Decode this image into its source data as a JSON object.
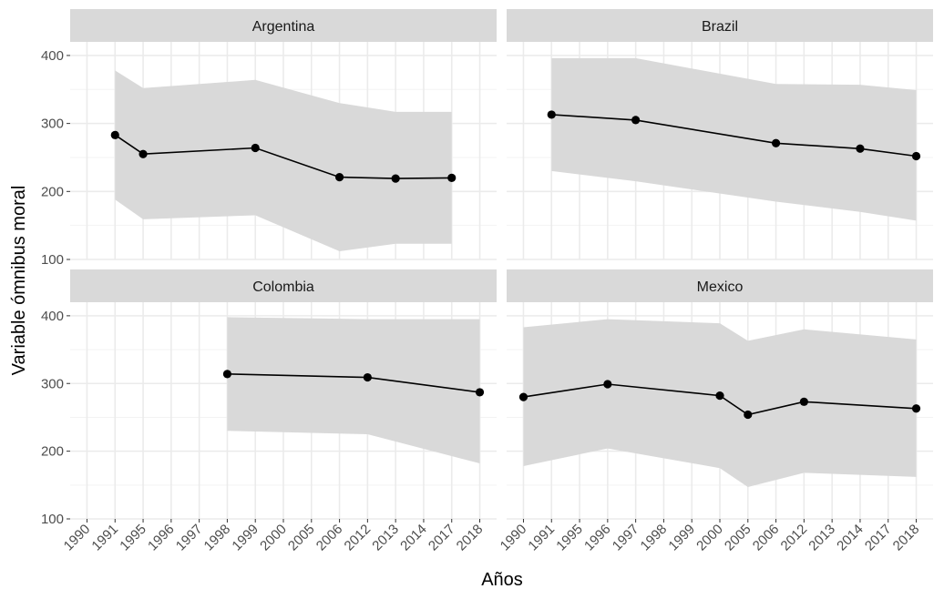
{
  "chart_data": {
    "type": "line",
    "facets": [
      "Argentina",
      "Brazil",
      "Colombia",
      "Mexico"
    ],
    "x_categories": [
      "1990",
      "1991",
      "1995",
      "1996",
      "1997",
      "1998",
      "1999",
      "2000",
      "2005",
      "2006",
      "2012",
      "2013",
      "2014",
      "2017",
      "2018"
    ],
    "xlabel": "Años",
    "ylabel": "Variable ómnibus moral",
    "yticks": [
      100,
      200,
      300,
      400
    ],
    "ylim": [
      100,
      420
    ],
    "grid": true,
    "legend": "none",
    "panels": [
      {
        "name": "Argentina",
        "x": [
          "1991",
          "1995",
          "1999",
          "2006",
          "2013",
          "2017"
        ],
        "y": [
          283,
          255,
          264,
          221,
          219,
          220
        ],
        "lower": [
          188,
          159,
          165,
          112,
          123,
          123
        ],
        "upper": [
          378,
          352,
          364,
          330,
          317,
          317
        ]
      },
      {
        "name": "Brazil",
        "x": [
          "1991",
          "1997",
          "2006",
          "2014",
          "2018"
        ],
        "y": [
          313,
          305,
          271,
          263,
          252
        ],
        "lower": [
          230,
          215,
          185,
          170,
          157
        ],
        "upper": [
          396,
          396,
          358,
          357,
          349
        ]
      },
      {
        "name": "Colombia",
        "x": [
          "1998",
          "2012",
          "2018"
        ],
        "y": [
          314,
          309,
          287
        ],
        "lower": [
          230,
          225,
          182
        ],
        "upper": [
          398,
          395,
          395
        ]
      },
      {
        "name": "Mexico",
        "x": [
          "1990",
          "1996",
          "2000",
          "2005",
          "2012",
          "2018"
        ],
        "y": [
          280,
          299,
          282,
          254,
          273,
          263
        ],
        "lower": [
          178,
          204,
          175,
          147,
          168,
          162
        ],
        "upper": [
          383,
          395,
          389,
          363,
          380,
          365
        ]
      }
    ]
  },
  "colors": {
    "strip_bg": "#d9d9d9",
    "grid": "#ebebeb",
    "ribbon": "#d9d9d9",
    "line": "#000000",
    "point": "#000000",
    "tick_text": "#4d4d4d"
  }
}
